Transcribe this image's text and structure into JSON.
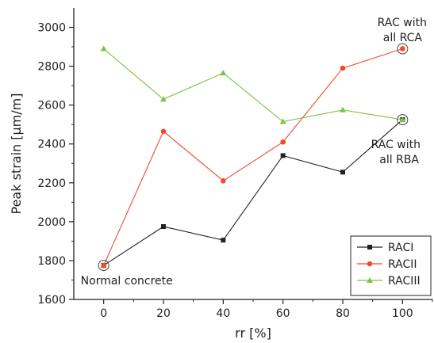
{
  "chart_data": {
    "type": "line",
    "xlabel": "rr [%]",
    "ylabel": "Peak strain [μm/m]",
    "x": [
      0,
      20,
      40,
      60,
      80,
      100
    ],
    "xlim": [
      -10,
      110
    ],
    "ylim": [
      1600,
      3100
    ],
    "xticks": [
      0,
      20,
      40,
      60,
      80,
      100
    ],
    "yticks": [
      1600,
      1800,
      2000,
      2200,
      2400,
      2600,
      2800,
      3000
    ],
    "grid": false,
    "legend_position": "bottom-right",
    "series": [
      {
        "name": "RACI",
        "color": "#222222",
        "marker": "square",
        "values": [
          1775,
          1975,
          1905,
          2340,
          2255,
          2525
        ]
      },
      {
        "name": "RACII",
        "color": "#f04a2f",
        "marker": "circle",
        "values": [
          1775,
          2465,
          2210,
          2410,
          2790,
          2890
        ]
      },
      {
        "name": "RACIII",
        "color": "#7cc444",
        "marker": "triangle",
        "values": [
          2890,
          2630,
          2765,
          2515,
          2575,
          2525
        ]
      }
    ],
    "annotations": [
      {
        "id": "normal",
        "text": "Normal concrete",
        "x": 0,
        "y": 1775
      },
      {
        "id": "rca",
        "text": "RAC with all RCA",
        "lines": [
          "RAC with",
          "all RCA"
        ],
        "x": 100,
        "y": 2890
      },
      {
        "id": "rba",
        "text": "RAC with all RBA",
        "lines": [
          "RAC with",
          "all RBA"
        ],
        "x": 100,
        "y": 2525
      }
    ]
  }
}
